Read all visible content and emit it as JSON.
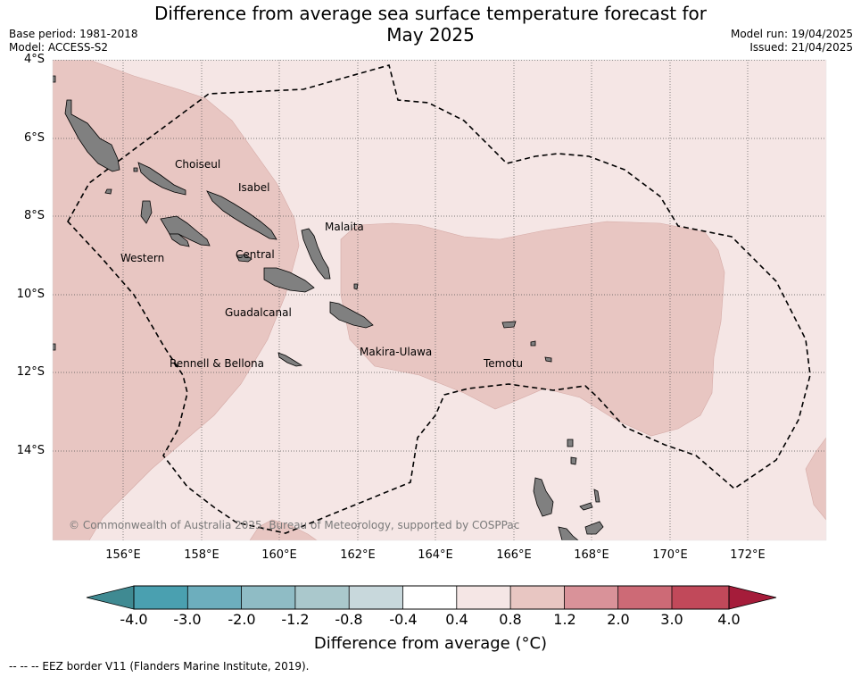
{
  "header": {
    "title_line1": "Difference from average sea surface temperature forecast for",
    "title_line2": "May 2025",
    "base_period": "Base period: 1981-2018",
    "model": "Model: ACCESS-S2",
    "model_run": "Model run: 19/04/2025",
    "issued": "Issued: 21/04/2025"
  },
  "map": {
    "latitude_labels": [
      "4°S",
      "6°S",
      "8°S",
      "10°S",
      "12°S",
      "14°S"
    ],
    "longitude_labels": [
      "156°E",
      "158°E",
      "160°E",
      "162°E",
      "164°E",
      "166°E",
      "168°E",
      "170°E",
      "172°E"
    ],
    "places": [
      "Choiseul",
      "Isabel",
      "Malaita",
      "Western",
      "Central",
      "Guadalcanal",
      "Rennell & Bellona",
      "Makira-Ulawa",
      "Temotu"
    ],
    "copyright": "© Commonwealth of Australia 2025, Bureau of Meteorology, supported by COSPPac",
    "colors": {
      "anomaly_0_4_to_0_8": "#f5e6e5",
      "anomaly_0_8_to_1_2": "#e8c6c2",
      "land": "#808080",
      "eez_border": "#000000"
    }
  },
  "colorbar": {
    "tick_labels": [
      "-4.0",
      "-3.0",
      "-2.0",
      "-1.2",
      "-0.8",
      "-0.4",
      "0.4",
      "0.8",
      "1.2",
      "2.0",
      "3.0",
      "4.0"
    ],
    "colors": [
      "#4aa0b0",
      "#6daebd",
      "#8fbcc5",
      "#aac8cc",
      "#c8d8dc",
      "#ffffff",
      "#f5e6e5",
      "#e8c6c2",
      "#d99299",
      "#cd6a76",
      "#c1495a"
    ],
    "extend_low_color": "#3f8a92",
    "extend_high_color": "#a51c3a",
    "title": "Difference from average ($^\\circ$C)",
    "title_display": "Difference from average (°C)"
  },
  "footer": {
    "note": "--  --  -- EEZ border V11 (Flanders Marine Institute, 2019)."
  }
}
